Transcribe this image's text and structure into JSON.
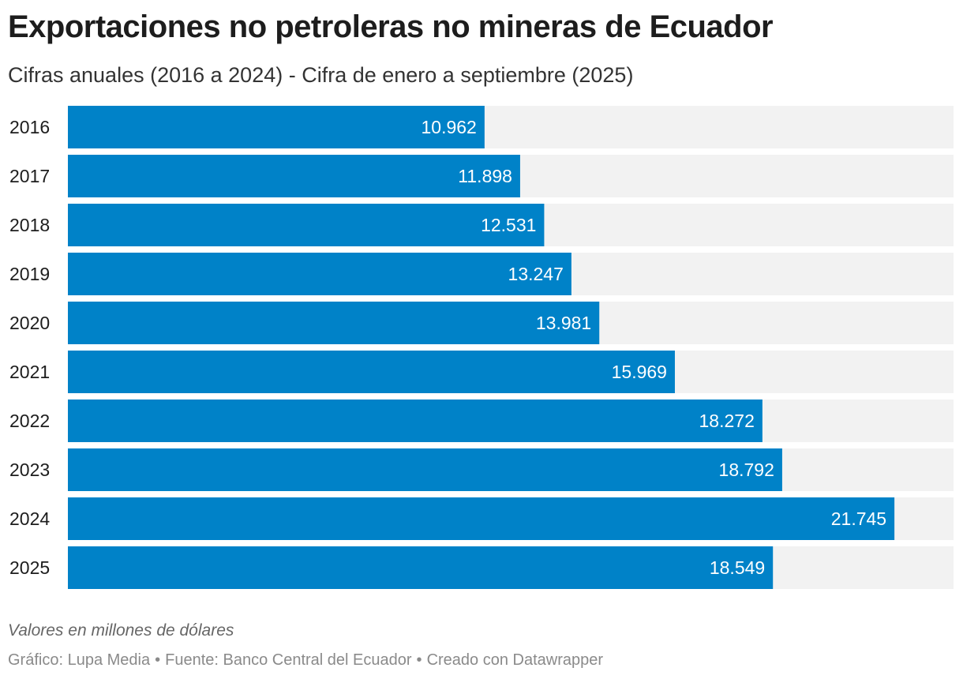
{
  "title": "Exportaciones no petroleras no mineras de Ecuador",
  "subtitle": "Cifras anuales (2016 a 2024) - Cifra de enero a septiembre (2025)",
  "note": "Valores en millones de dólares",
  "footer": {
    "chart_credit": "Gráfico: Lupa Media",
    "source": "Fuente: Banco Central del Ecuador",
    "tool": "Creado con Datawrapper",
    "separator": "•"
  },
  "colors": {
    "bar": "#0082c8",
    "track": "#f2f2f2",
    "label_inside": "#ffffff",
    "category_text": "#1d1d1d"
  },
  "chart_data": {
    "type": "bar",
    "orientation": "horizontal",
    "categories": [
      "2016",
      "2017",
      "2018",
      "2019",
      "2020",
      "2021",
      "2022",
      "2023",
      "2024",
      "2025"
    ],
    "values": [
      10962,
      11898,
      12531,
      13247,
      13981,
      15969,
      18272,
      18792,
      21745,
      18549
    ],
    "value_labels": [
      "10.962",
      "11.898",
      "12.531",
      "13.247",
      "13.981",
      "15.969",
      "18.272",
      "18.792",
      "21.745",
      "18.549"
    ],
    "xlim": [
      0,
      23300
    ],
    "title": "Exportaciones no petroleras no mineras de Ecuador",
    "subtitle": "Cifras anuales (2016 a 2024) - Cifra de enero a septiembre (2025)",
    "grid": false,
    "legend": "none"
  }
}
